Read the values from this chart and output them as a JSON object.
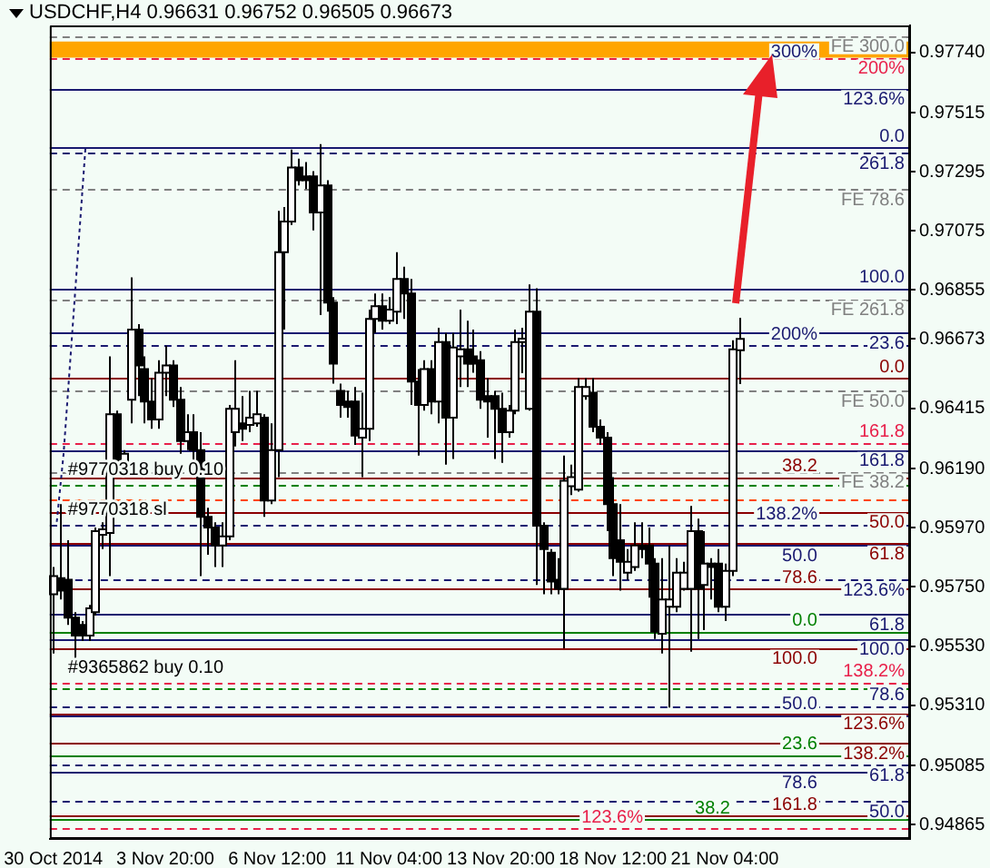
{
  "chart_data": {
    "type": "candlestick",
    "title": "USDCHF,H4 0.96631 0.96752 0.96505 0.96673",
    "categories": [
      "30 Oct 2014",
      null,
      null,
      null,
      null,
      null,
      null,
      null,
      null,
      null,
      null,
      null,
      null,
      null,
      null,
      null,
      "3 Nov 20:00",
      null,
      null,
      null,
      null,
      null,
      null,
      null,
      null,
      null,
      null,
      null,
      null,
      null,
      null,
      null,
      "6 Nov 12:00",
      null,
      null,
      null,
      null,
      null,
      null,
      null,
      null,
      null,
      null,
      null,
      null,
      null,
      null,
      null,
      "11 Nov 04:00",
      null,
      null,
      null,
      null,
      null,
      null,
      null,
      null,
      null,
      null,
      null,
      null,
      null,
      null,
      null,
      "13 Nov 20:00",
      null,
      null,
      null,
      null,
      null,
      null,
      null,
      null,
      null,
      null,
      null,
      null,
      null,
      null,
      null,
      "18 Nov 12:00",
      null,
      null,
      null,
      null,
      null,
      null,
      null,
      null,
      null,
      null,
      null,
      null,
      null,
      null,
      null,
      "21 Nov 04:00",
      null,
      null,
      null,
      null,
      null,
      null,
      null,
      null,
      null,
      null,
      null,
      null,
      null,
      null,
      null,
      null,
      null,
      null,
      null,
      null,
      null,
      null,
      null,
      null,
      null,
      null
    ],
    "ohlc": [
      [
        0.95723,
        0.95824,
        0.95502,
        0.9579
      ],
      [
        0.95783,
        0.96058,
        0.95703,
        0.95736
      ],
      [
        0.95777,
        0.95924,
        0.95609,
        0.95636
      ],
      [
        0.95636,
        0.95656,
        0.95435,
        0.95569
      ],
      [
        0.95609,
        0.95623,
        0.95549,
        0.95569
      ],
      [
        0.95569,
        0.95683,
        0.95549,
        0.9567
      ],
      [
        0.95656,
        0.95971,
        0.95643,
        0.95958
      ],
      [
        0.95944,
        0.95991,
        0.95891,
        0.95964
      ],
      [
        0.95951,
        0.96608,
        0.9579,
        0.96393
      ],
      [
        0.96393,
        0.96406,
        0.96192,
        0.96212
      ],
      [
        0.96212,
        0.96259,
        0.96179,
        0.96246
      ],
      [
        0.96447,
        0.96902,
        0.96359,
        0.96708
      ],
      [
        0.96708,
        0.96728,
        0.9646,
        0.96574
      ],
      [
        0.96561,
        0.96608,
        0.96359,
        0.9644
      ],
      [
        0.9644,
        0.96527,
        0.96339,
        0.96373
      ],
      [
        0.96373,
        0.96594,
        0.96339,
        0.96547
      ],
      [
        0.96547,
        0.96648,
        0.9646,
        0.96574
      ],
      [
        0.96574,
        0.96594,
        0.9642,
        0.96447
      ],
      [
        0.96447,
        0.96494,
        0.96246,
        0.96293
      ],
      [
        0.96293,
        0.96393,
        0.96259,
        0.96326
      ],
      [
        0.96326,
        0.96393,
        0.96205,
        0.96259
      ],
      [
        0.96259,
        0.96326,
        0.9579,
        0.96011
      ],
      [
        0.96011,
        0.96045,
        0.9587,
        0.95971
      ],
      [
        0.95971,
        0.95991,
        0.95824,
        0.95904
      ],
      [
        0.95904,
        0.95991,
        0.95824,
        0.95938
      ],
      [
        0.95938,
        0.96427,
        0.95924,
        0.96413
      ],
      [
        0.96326,
        0.96594,
        0.96273,
        0.96413
      ],
      [
        0.96359,
        0.9646,
        0.96293,
        0.96339
      ],
      [
        0.96353,
        0.9648,
        0.96326,
        0.9638
      ],
      [
        0.96359,
        0.9648,
        0.96346,
        0.96393
      ],
      [
        0.9638,
        0.96393,
        0.96011,
        0.96072
      ],
      [
        0.96072,
        0.96359,
        0.96058,
        0.96259
      ],
      [
        0.96259,
        0.9715,
        0.96159,
        0.96996
      ],
      [
        0.96996,
        0.97164,
        0.96708,
        0.9711
      ],
      [
        0.9711,
        0.97378,
        0.97097,
        0.97311
      ],
      [
        0.97311,
        0.97344,
        0.97244,
        0.97264
      ],
      [
        0.97278,
        0.97331,
        0.97231,
        0.97264
      ],
      [
        0.97278,
        0.97298,
        0.97077,
        0.97144
      ],
      [
        0.97144,
        0.97398,
        0.96762,
        0.97244
      ],
      [
        0.97244,
        0.97264,
        0.96775,
        0.96808
      ],
      [
        0.96808,
        0.96829,
        0.96507,
        0.96581
      ],
      [
        0.9648,
        0.96507,
        0.9638,
        0.96427
      ],
      [
        0.9644,
        0.9648,
        0.9638,
        0.9642
      ],
      [
        0.9644,
        0.96494,
        0.96279,
        0.96313
      ],
      [
        0.96306,
        0.96473,
        0.96159,
        0.96339
      ],
      [
        0.96339,
        0.96782,
        0.96293,
        0.96748
      ],
      [
        0.96748,
        0.96842,
        0.96695,
        0.96795
      ],
      [
        0.96795,
        0.96842,
        0.96708,
        0.96741
      ],
      [
        0.96741,
        0.96829,
        0.96728,
        0.96782
      ],
      [
        0.96775,
        0.96996,
        0.96728,
        0.96896
      ],
      [
        0.96896,
        0.96942,
        0.96748,
        0.96842
      ],
      [
        0.96842,
        0.96896,
        0.96427,
        0.96514
      ],
      [
        0.96514,
        0.96561,
        0.96239,
        0.96427
      ],
      [
        0.96427,
        0.96594,
        0.96406,
        0.96561
      ],
      [
        0.96561,
        0.96594,
        0.96393,
        0.9644
      ],
      [
        0.9644,
        0.96715,
        0.96359,
        0.96661
      ],
      [
        0.96661,
        0.96695,
        0.96205,
        0.9638
      ],
      [
        0.9638,
        0.96695,
        0.96226,
        0.96641
      ],
      [
        0.96608,
        0.96782,
        0.96494,
        0.96634
      ],
      [
        0.96634,
        0.96741,
        0.96494,
        0.96581
      ],
      [
        0.96608,
        0.96708,
        0.96547,
        0.96581
      ],
      [
        0.96594,
        0.96628,
        0.96413,
        0.96447
      ],
      [
        0.9646,
        0.96527,
        0.96306,
        0.9644
      ],
      [
        0.9646,
        0.9648,
        0.96226,
        0.96413
      ],
      [
        0.96413,
        0.96473,
        0.96212,
        0.96326
      ],
      [
        0.96326,
        0.96427,
        0.96306,
        0.96406
      ],
      [
        0.96406,
        0.96708,
        0.96393,
        0.96661
      ],
      [
        0.96661,
        0.96715,
        0.96546,
        0.96674
      ],
      [
        0.96413,
        0.96876,
        0.96406,
        0.96775
      ],
      [
        0.96775,
        0.96862,
        0.95757,
        0.95978
      ],
      [
        0.95978,
        0.95991,
        0.95723,
        0.95891
      ],
      [
        0.95877,
        0.95891,
        0.95723,
        0.9577
      ],
      [
        0.95777,
        0.95857,
        0.95723,
        0.95743
      ],
      [
        0.95743,
        0.96239,
        0.95522,
        0.96145
      ],
      [
        0.96125,
        0.96205,
        0.96092,
        0.96159
      ],
      [
        0.96112,
        0.96527,
        0.96105,
        0.96494
      ],
      [
        0.9646,
        0.96527,
        0.96447,
        0.96494
      ],
      [
        0.96473,
        0.96527,
        0.96326,
        0.96346
      ],
      [
        0.96346,
        0.96373,
        0.96279,
        0.96306
      ],
      [
        0.96306,
        0.96326,
        0.95958,
        0.96058
      ],
      [
        0.96058,
        0.96159,
        0.9579,
        0.95857
      ],
      [
        0.95924,
        0.96058,
        0.95736,
        0.95844
      ],
      [
        0.95803,
        0.95891,
        0.95777,
        0.95844
      ],
      [
        0.95824,
        0.95991,
        0.9581,
        0.95904
      ],
      [
        0.95904,
        0.95991,
        0.95857,
        0.95891
      ],
      [
        0.95904,
        0.95971,
        0.9571,
        0.95837
      ],
      [
        0.95837,
        0.95857,
        0.95556,
        0.95583
      ],
      [
        0.95576,
        0.95857,
        0.95502,
        0.95703
      ],
      [
        0.95676,
        0.95904,
        0.95301,
        0.95703
      ],
      [
        0.95676,
        0.95857,
        0.95656,
        0.95803
      ],
      [
        0.95743,
        0.95844,
        0.95736,
        0.95803
      ],
      [
        0.95743,
        0.96051,
        0.95509,
        0.95958
      ],
      [
        0.95958,
        0.96004,
        0.95556,
        0.95743
      ],
      [
        0.95757,
        0.95958,
        0.95589,
        0.95837
      ],
      [
        0.95837,
        0.95857,
        0.95703,
        0.95824
      ],
      [
        0.95837,
        0.95891,
        0.95656,
        0.95676
      ],
      [
        0.95676,
        0.95837,
        0.95623,
        0.9581
      ],
      [
        0.9581,
        0.96668,
        0.9579,
        0.96634
      ],
      [
        0.96631,
        0.96752,
        0.96505,
        0.96673
      ],
      null,
      null,
      null,
      null,
      null,
      null,
      null,
      null,
      null,
      null,
      null,
      null,
      null,
      null,
      null,
      null,
      null,
      null,
      null,
      null,
      null,
      null,
      null,
      null
    ],
    "ylim": [
      0.94812,
      0.9784
    ],
    "yticks": [
      {
        "value": 0.9774,
        "label": "0.97740"
      },
      0.97515,
      0.97295,
      0.97075,
      0.96855,
      0.96673,
      0.96415,
      {
        "value": 0.9619,
        "label": "0.96190"
      },
      {
        "value": 0.9597,
        "label": "0.95970"
      },
      {
        "value": 0.9575,
        "label": "0.95750"
      },
      {
        "value": 0.9553,
        "label": "0.95530"
      },
      {
        "value": 0.9531,
        "label": "0.95310"
      },
      0.95085,
      0.94865
    ],
    "bands": [
      {
        "axis": "y",
        "from": 0.9772,
        "to": 0.9778,
        "color": "#ffa500"
      }
    ],
    "ref_lines": [
      {
        "axis": "y",
        "value": 0.978,
        "color": "#808080",
        "line_style": "dashed"
      },
      {
        "axis": "y",
        "value": 0.9772,
        "color": "#e8204a",
        "line_style": "dashed"
      },
      {
        "axis": "y",
        "value": 0.97606,
        "color": "#191970",
        "line_style": "solid"
      },
      {
        "axis": "y",
        "value": 0.97385,
        "color": "#191970",
        "line_style": "solid"
      },
      {
        "axis": "y",
        "value": 0.97365,
        "color": "#191970",
        "line_style": "dashed"
      },
      {
        "axis": "y",
        "value": 0.97231,
        "color": "#808080",
        "line_style": "dashed"
      },
      {
        "axis": "y",
        "value": 0.96862,
        "color": "#191970",
        "line_style": "solid"
      },
      {
        "axis": "y",
        "value": 0.96822,
        "color": "#808080",
        "line_style": "dashed"
      },
      {
        "axis": "y",
        "value": 0.96695,
        "color": "#191970",
        "line_style": "solid"
      },
      {
        "axis": "y",
        "value": 0.96648,
        "color": "#191970",
        "line_style": "dashed"
      },
      {
        "axis": "y",
        "value": 0.96527,
        "color": "#8b0000",
        "line_style": "solid"
      },
      {
        "axis": "y",
        "value": 0.9648,
        "color": "#808080",
        "line_style": "dashed"
      },
      {
        "axis": "y",
        "value": 0.96286,
        "color": "#e8204a",
        "line_style": "dashed"
      },
      {
        "axis": "y",
        "value": 0.96259,
        "color": "#191970",
        "line_style": "solid"
      },
      {
        "axis": "y",
        "value": 0.96179,
        "color": "#808080",
        "line_style": "dashed"
      },
      {
        "axis": "y",
        "value": 0.96159,
        "color": "#8b0000",
        "line_style": "solid"
      },
      {
        "axis": "y",
        "value": 0.96132,
        "color": "#008000",
        "line_style": "dashed"
      },
      {
        "axis": "y",
        "value": 0.96078,
        "color": "#ff4500",
        "line_style": "dashed"
      },
      {
        "axis": "y",
        "value": 0.96031,
        "color": "#8b0000",
        "line_style": "solid"
      },
      {
        "axis": "y",
        "value": 0.95978,
        "color": "#191970",
        "line_style": "dashed"
      },
      {
        "axis": "y",
        "value": 0.95911,
        "color": "#8b0000",
        "line_style": "solid"
      },
      {
        "axis": "y",
        "value": 0.95904,
        "color": "#191970",
        "line_style": "solid"
      },
      {
        "axis": "y",
        "value": 0.95777,
        "color": "#191970",
        "line_style": "dashed"
      },
      {
        "axis": "y",
        "value": 0.95743,
        "color": "#8b0000",
        "line_style": "solid"
      },
      {
        "axis": "y",
        "value": 0.9565,
        "color": "#191970",
        "line_style": "solid"
      },
      {
        "axis": "y",
        "value": 0.95583,
        "color": "#008000",
        "line_style": "solid"
      },
      {
        "axis": "y",
        "value": 0.95556,
        "color": "#191970",
        "line_style": "solid"
      },
      {
        "axis": "y",
        "value": 0.95523,
        "color": "#8b0000",
        "line_style": "solid"
      },
      {
        "axis": "y",
        "value": 0.95395,
        "color": "#e8204a",
        "line_style": "dashed"
      },
      {
        "axis": "y",
        "value": 0.95375,
        "color": "#008000",
        "line_style": "dashed"
      },
      {
        "axis": "y",
        "value": 0.95308,
        "color": "#191970",
        "line_style": "dashed"
      },
      {
        "axis": "y",
        "value": 0.95281,
        "color": "#8b0000",
        "line_style": "solid"
      },
      {
        "axis": "y",
        "value": 0.95274,
        "color": "#191970",
        "line_style": "solid"
      },
      {
        "axis": "y",
        "value": 0.95167,
        "color": "#8b0000",
        "line_style": "solid"
      },
      {
        "axis": "y",
        "value": 0.95126,
        "color": "#008000",
        "line_style": "solid"
      },
      {
        "axis": "y",
        "value": 0.95087,
        "color": "#191970",
        "line_style": "dashed"
      },
      {
        "axis": "y",
        "value": 0.9506,
        "color": "#191970",
        "line_style": "solid"
      },
      {
        "axis": "y",
        "value": 0.94953,
        "color": "#191970",
        "line_style": "dashed"
      },
      {
        "axis": "y",
        "value": 0.94899,
        "color": "#8b0000",
        "line_style": "solid"
      },
      {
        "axis": "y",
        "value": 0.94886,
        "color": "#008000",
        "line_style": "solid"
      },
      {
        "axis": "y",
        "value": 0.94852,
        "color": "#e8204a",
        "line_style": "dashed"
      }
    ],
    "annotations": [
      {
        "text": "FE 300.0",
        "y": 0.978
      },
      {
        "text": "300%",
        "y": 0.9778
      },
      {
        "text": "200%",
        "y": 0.9772
      },
      {
        "text": "123.6%",
        "y": 0.97606
      },
      {
        "text": "0.0",
        "y": 0.97385
      },
      {
        "text": "261.8",
        "y": 0.97365
      },
      {
        "text": "FE 78.6",
        "y": 0.97231
      },
      {
        "text": "100.0",
        "y": 0.96862
      },
      {
        "text": "FE 261.8",
        "y": 0.96822
      },
      {
        "text": "23.6",
        "y": 0.96695
      },
      {
        "text": "200%",
        "y": 0.96648
      },
      {
        "text": "0.0",
        "y": 0.96527
      },
      {
        "text": "FE 50.0",
        "y": 0.9648
      },
      {
        "text": "161.8",
        "y": 0.96286
      },
      {
        "text": "161.8",
        "y": 0.96259
      },
      {
        "text": "FE 38.2",
        "y": 0.96179
      },
      {
        "text": "38.2",
        "y": 0.96159
      },
      {
        "text": "50.0",
        "y": 0.96031
      },
      {
        "text": "138.2%",
        "y": 0.95978
      },
      {
        "text": "61.8",
        "y": 0.95911
      },
      {
        "text": "50.0",
        "y": 0.95904
      },
      {
        "text": "123.6%",
        "y": 0.95777
      },
      {
        "text": "78.6",
        "y": 0.95743
      },
      {
        "text": "61.8",
        "y": 0.9565
      },
      {
        "text": "0.0",
        "y": 0.95583
      },
      {
        "text": "100.0",
        "y": 0.95556
      },
      {
        "text": "100.0",
        "y": 0.95523
      },
      {
        "text": "138.2%",
        "y": 0.95395
      },
      {
        "text": "78.6",
        "y": 0.95308
      },
      {
        "text": "123.6%",
        "y": 0.95281
      },
      {
        "text": "50.0",
        "y": 0.95274
      },
      {
        "text": "138.2%",
        "y": 0.95167
      },
      {
        "text": "23.6",
        "y": 0.95126
      },
      {
        "text": "61.8",
        "y": 0.95087
      },
      {
        "text": "78.6",
        "y": 0.9506
      },
      {
        "text": "50.0",
        "y": 0.94953
      },
      {
        "text": "161.8",
        "y": 0.94899
      },
      {
        "text": "38.2",
        "y": 0.94886
      },
      {
        "text": "123.6%",
        "y": 0.94852
      },
      {
        "text": "#9770318 buy 0.10",
        "y": 0.96132
      },
      {
        "text": "#9770318 sl",
        "y": 0.96078
      },
      {
        "text": "#9365862 buy 0.10",
        "y": 0.95395
      }
    ],
    "legend": false,
    "grid": false
  }
}
